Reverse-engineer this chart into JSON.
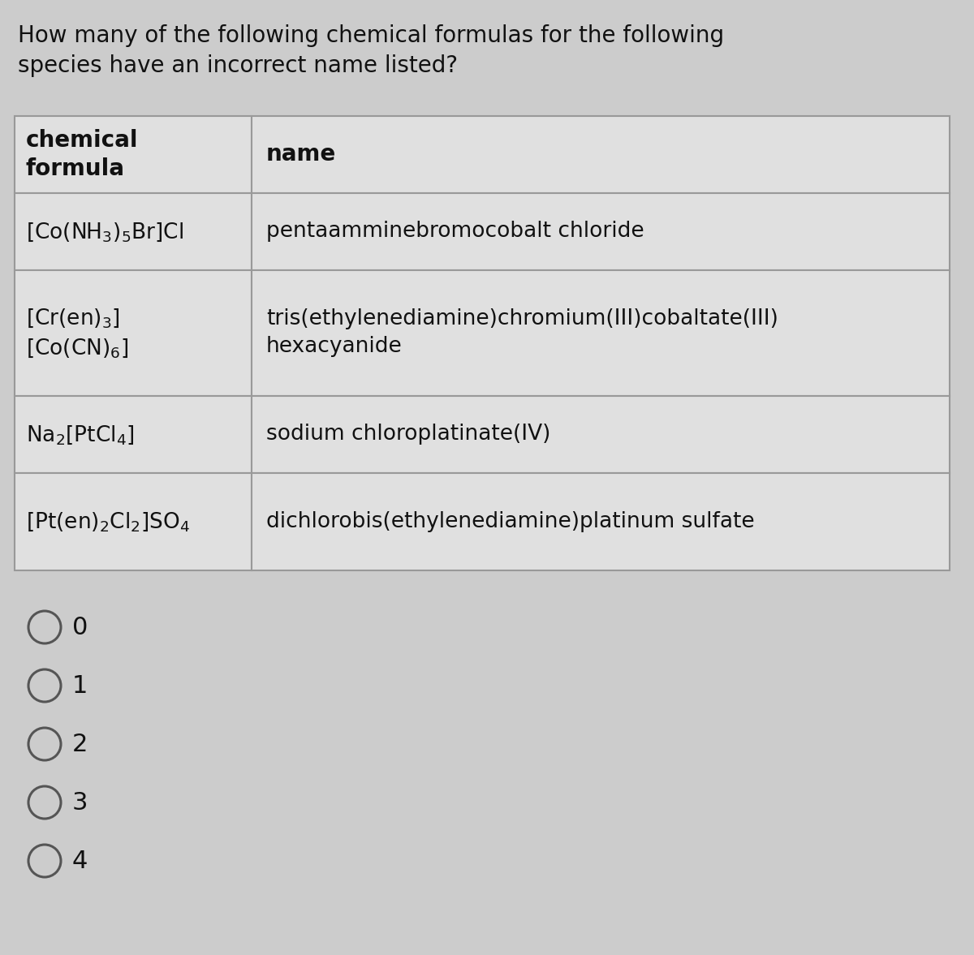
{
  "title": "How many of the following chemical formulas for the following\nspecies have an incorrect name listed?",
  "title_fontsize": 20,
  "background_color": "#cccccc",
  "table_bg": "#e0e0e0",
  "table_border_color": "#999999",
  "col1_header": "chemical\nformula",
  "col2_header": "name",
  "rows": [
    {
      "formula": "[Co(NH$_{3}$)$_{5}$Br]Cl",
      "name": "pentaamminebromocobalt chloride"
    },
    {
      "formula": "[Cr(en)$_{3}$]\n[Co(CN)$_{6}$]",
      "name": "tris(ethylenediamine)chromium(III)cobaltate(III)\nhexacyanide"
    },
    {
      "formula": "Na$_{2}$[PtCl$_{4}$]",
      "name": "sodium chloroplatinate(IV)"
    },
    {
      "formula": "[Pt(en)$_{2}$Cl$_{2}$]SO$_{4}$",
      "name": "dichlorobis(ethylenediamine)platinum sulfate"
    }
  ],
  "options": [
    "0",
    "1",
    "2",
    "3",
    "4"
  ],
  "option_fontsize": 22,
  "text_color": "#111111",
  "formula_fontsize": 19,
  "name_fontsize": 19,
  "header_fontsize": 20
}
